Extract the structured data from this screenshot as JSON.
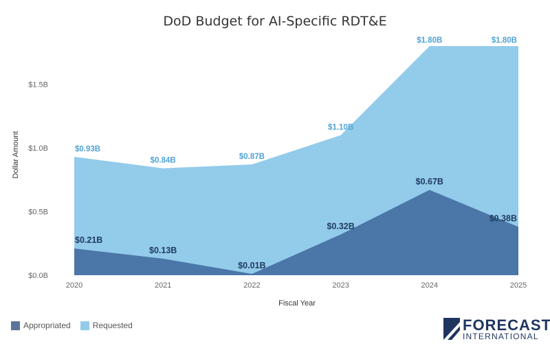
{
  "chart_data": {
    "type": "area",
    "title": "DoD Budget for AI-Specific RDT&E",
    "xlabel": "Fiscal Year",
    "ylabel": "Dollar Amount",
    "categories": [
      "2020",
      "2021",
      "2022",
      "2023",
      "2024",
      "2025"
    ],
    "ylim": [
      0,
      1.8
    ],
    "yticks": [
      {
        "value": 0,
        "label": "$0.0B"
      },
      {
        "value": 0.5,
        "label": "$0.5B"
      },
      {
        "value": 1.0,
        "label": "$1.0B"
      },
      {
        "value": 1.5,
        "label": "$1.5B"
      }
    ],
    "series": [
      {
        "name": "Requested",
        "color": "#93cbea",
        "values": [
          0.93,
          0.84,
          0.87,
          1.1,
          1.8,
          1.8
        ],
        "labels": [
          "$0.93B",
          "$0.84B",
          "$0.87B",
          "$1.10B",
          "$1.80B",
          "$1.80B"
        ]
      },
      {
        "name": "Appropriated",
        "color": "#4a76a8",
        "values": [
          0.21,
          0.13,
          0.01,
          0.32,
          0.67,
          0.38
        ],
        "labels": [
          "$0.21B",
          "$0.13B",
          "$0.01B",
          "$0.32B",
          "$0.67B",
          "$0.38B"
        ]
      }
    ],
    "grid": false,
    "legend_position": "bottom-left"
  },
  "legend": {
    "appropriated": "Appropriated",
    "requested": "Requested",
    "appropriated_color": "#5b7499",
    "requested_color": "#93cbea"
  },
  "logo": {
    "line1": "FORECAST",
    "line2": "INTERNATIONAL"
  }
}
